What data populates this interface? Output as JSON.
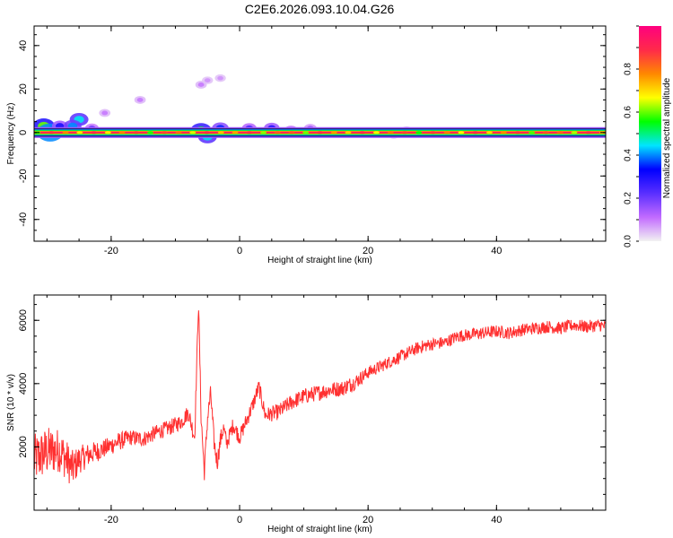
{
  "title": "C2E6.2026.093.10.04.G26",
  "chart_data": [
    {
      "type": "heatmap",
      "xlabel": "Height of straight line (km)",
      "ylabel": "Frequency (Hz)",
      "xlim": [
        -32,
        57
      ],
      "ylim": [
        -50,
        49
      ],
      "xticks": [
        -20,
        0,
        20,
        40
      ],
      "yticks": [
        -40,
        -20,
        0,
        20,
        40
      ],
      "grid": false,
      "ridge_frequency": 0,
      "colorbar": {
        "label": "Normalized spectral amplitude",
        "range": [
          0,
          1
        ],
        "ticks": [
          "0.0",
          "0.2",
          "0.4",
          "0.6",
          "0.8"
        ],
        "colors": [
          "#f2f2f2",
          "#c26bff",
          "#5a2fff",
          "#0000ff",
          "#00e5ff",
          "#00ff00",
          "#ffff00",
          "#ff8800",
          "#ff2a4a",
          "#ff007f"
        ]
      },
      "blobs": [
        {
          "x": -30.5,
          "y": 3,
          "amp": 0.6
        },
        {
          "x": -29.5,
          "y": 0,
          "amp": 0.8
        },
        {
          "x": -28,
          "y": 3,
          "amp": 0.3
        },
        {
          "x": -25,
          "y": 6,
          "amp": 0.45
        },
        {
          "x": -26,
          "y": 3,
          "amp": 0.4
        },
        {
          "x": -23,
          "y": 2,
          "amp": 0.2
        },
        {
          "x": -21,
          "y": 9,
          "amp": 0.1
        },
        {
          "x": -15.5,
          "y": 15,
          "amp": 0.1
        },
        {
          "x": -6,
          "y": 1,
          "amp": 0.55
        },
        {
          "x": -5,
          "y": -2,
          "amp": 0.45
        },
        {
          "x": -3,
          "y": 2,
          "amp": 0.35
        },
        {
          "x": -6,
          "y": 22,
          "amp": 0.1
        },
        {
          "x": -5,
          "y": 24,
          "amp": 0.08
        },
        {
          "x": -3,
          "y": 25,
          "amp": 0.08
        },
        {
          "x": 1.5,
          "y": 2,
          "amp": 0.25
        },
        {
          "x": 5,
          "y": 2,
          "amp": 0.3
        },
        {
          "x": 8,
          "y": 1,
          "amp": 0.2
        },
        {
          "x": 11,
          "y": 2,
          "amp": 0.15
        },
        {
          "x": 24,
          "y": -1,
          "amp": 0.1
        },
        {
          "x": 26,
          "y": 1,
          "amp": 0.1
        }
      ]
    },
    {
      "type": "line",
      "xlabel": "Height of straight line (km)",
      "ylabel": "SNR (10 * v/v)",
      "xlim": [
        -32,
        57
      ],
      "ylim": [
        0,
        6800
      ],
      "xticks": [
        -20,
        0,
        20,
        40
      ],
      "yticks": [
        2000,
        4000,
        6000
      ],
      "grid": false,
      "series": [
        {
          "color": "#ff3030",
          "x": [
            -32,
            -30,
            -28,
            -26,
            -25,
            -23,
            -21,
            -19,
            -17,
            -15,
            -13,
            -11,
            -9,
            -8,
            -7,
            -6.4,
            -6,
            -5.5,
            -5,
            -4.5,
            -4,
            -3.5,
            -3,
            -2.5,
            -2,
            -1,
            0,
            1,
            2,
            3,
            4,
            6,
            8,
            10,
            12,
            14,
            16,
            18,
            20,
            22,
            24,
            26,
            28,
            30,
            32,
            34,
            36,
            38,
            40,
            42,
            44,
            46,
            48,
            50,
            52,
            54,
            56,
            57
          ],
          "y": [
            1600,
            1850,
            1900,
            1300,
            1600,
            1800,
            1950,
            2150,
            2300,
            2250,
            2450,
            2600,
            2800,
            3100,
            2300,
            6600,
            3000,
            1200,
            2900,
            3700,
            2200,
            1500,
            2200,
            2600,
            2100,
            2700,
            2300,
            2800,
            3300,
            3900,
            3000,
            3100,
            3400,
            3600,
            3700,
            3800,
            3850,
            4050,
            4350,
            4550,
            4750,
            4950,
            5150,
            5250,
            5300,
            5500,
            5550,
            5600,
            5650,
            5600,
            5700,
            5750,
            5800,
            5750,
            5850,
            5800,
            5850,
            5800
          ],
          "noise_amplitude": [
            800,
            800,
            700,
            600,
            450,
            350,
            300,
            300,
            250,
            250,
            250,
            250,
            250,
            250,
            300,
            200,
            300,
            300,
            300,
            300,
            300,
            300,
            300,
            250,
            250,
            250,
            250,
            250,
            250,
            250,
            250,
            250,
            250,
            250,
            250,
            250,
            250,
            250,
            200,
            200,
            200,
            200,
            200,
            200,
            200,
            200,
            200,
            200,
            200,
            200,
            200,
            200,
            200,
            200,
            200,
            200,
            200,
            200
          ]
        }
      ]
    }
  ]
}
